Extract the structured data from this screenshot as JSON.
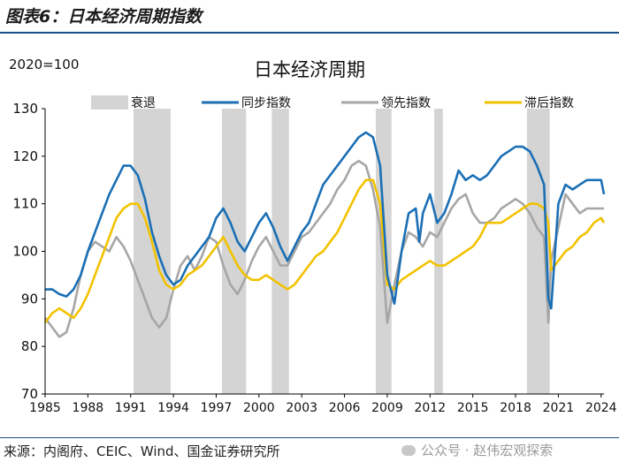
{
  "header": {
    "title": "图表6：日本经济周期指数"
  },
  "footer": {
    "source": "来源：内阁府、CEIC、Wind、国金证券研究所",
    "watermark": "公众号 · 赵伟宏观探索"
  },
  "colors": {
    "coincident": "#1a6fb5",
    "leading": "#a6a6a6",
    "lagging": "#f2c200",
    "recession": "#d4d4d4",
    "axis": "#000000"
  },
  "chart_data": {
    "type": "line",
    "title": "日本经济周期",
    "unit_note": "2020=100",
    "xlabel": "",
    "ylabel": "",
    "ylim": [
      70,
      130
    ],
    "xlim": [
      1985,
      2024.2
    ],
    "yticks": [
      70,
      80,
      90,
      100,
      110,
      120,
      130
    ],
    "xticks": [
      "1985",
      "1988",
      "1991",
      "1994",
      "1997",
      "2000",
      "2003",
      "2006",
      "2009",
      "2012",
      "2015",
      "2018",
      "2021",
      "2024"
    ],
    "xtick_values": [
      1985,
      1988,
      1991,
      1994,
      1997,
      2000,
      2003,
      2006,
      2009,
      2012,
      2015,
      2018,
      2021,
      2024
    ],
    "legend": [
      "衰退",
      "同步指数",
      "领先指数",
      "滞后指数"
    ],
    "recessions": [
      [
        1991.2,
        1993.8
      ],
      [
        1997.4,
        1999.1
      ],
      [
        2000.9,
        2002.1
      ],
      [
        2008.2,
        2009.3
      ],
      [
        2012.3,
        2012.9
      ],
      [
        2018.8,
        2020.4
      ]
    ],
    "series": [
      {
        "name": "同步指数",
        "x": [
          1985.0,
          1985.5,
          1986.0,
          1986.5,
          1987.0,
          1987.5,
          1988.0,
          1988.5,
          1989.0,
          1989.5,
          1990.0,
          1990.5,
          1991.0,
          1991.5,
          1992.0,
          1992.5,
          1993.0,
          1993.5,
          1994.0,
          1994.5,
          1995.0,
          1995.5,
          1996.0,
          1996.5,
          1997.0,
          1997.5,
          1998.0,
          1998.5,
          1999.0,
          1999.5,
          2000.0,
          2000.5,
          2001.0,
          2001.5,
          2002.0,
          2002.5,
          2003.0,
          2003.5,
          2004.0,
          2004.5,
          2005.0,
          2005.5,
          2006.0,
          2006.5,
          2007.0,
          2007.5,
          2008.0,
          2008.5,
          2009.0,
          2009.5,
          2010.0,
          2010.5,
          2011.0,
          2011.25,
          2011.5,
          2012.0,
          2012.5,
          2013.0,
          2013.5,
          2014.0,
          2014.5,
          2015.0,
          2015.5,
          2016.0,
          2016.5,
          2017.0,
          2017.5,
          2018.0,
          2018.5,
          2019.0,
          2019.5,
          2020.0,
          2020.3,
          2020.5,
          2021.0,
          2021.5,
          2022.0,
          2022.5,
          2023.0,
          2023.5,
          2024.0,
          2024.2
        ],
        "values": [
          92,
          92,
          91,
          90.5,
          92,
          95,
          100,
          104,
          108,
          112,
          115,
          118,
          118,
          116,
          111,
          104,
          99,
          95,
          93,
          94,
          97,
          99,
          101,
          103,
          107,
          109,
          106,
          102,
          100,
          103,
          106,
          108,
          105,
          101,
          98,
          101,
          104,
          106,
          110,
          114,
          116,
          118,
          120,
          122,
          124,
          125,
          124,
          118,
          95,
          89,
          100,
          108,
          109,
          102,
          108,
          112,
          106,
          108,
          112,
          117,
          115,
          116,
          115,
          116,
          118,
          120,
          121,
          122,
          122,
          121,
          118,
          114,
          90,
          88,
          110,
          114,
          113,
          114,
          115,
          115,
          115,
          112
        ]
      },
      {
        "name": "领先指数",
        "x": [
          1985.0,
          1985.5,
          1986.0,
          1986.5,
          1987.0,
          1987.5,
          1988.0,
          1988.5,
          1989.0,
          1989.5,
          1990.0,
          1990.5,
          1991.0,
          1991.5,
          1992.0,
          1992.5,
          1993.0,
          1993.5,
          1994.0,
          1994.5,
          1995.0,
          1995.5,
          1996.0,
          1996.5,
          1997.0,
          1997.5,
          1998.0,
          1998.5,
          1999.0,
          1999.5,
          2000.0,
          2000.5,
          2001.0,
          2001.5,
          2002.0,
          2002.5,
          2003.0,
          2003.5,
          2004.0,
          2004.5,
          2005.0,
          2005.5,
          2006.0,
          2006.5,
          2007.0,
          2007.5,
          2008.0,
          2008.5,
          2009.0,
          2009.5,
          2010.0,
          2010.5,
          2011.0,
          2011.5,
          2012.0,
          2012.5,
          2013.0,
          2013.5,
          2014.0,
          2014.5,
          2015.0,
          2015.5,
          2016.0,
          2016.5,
          2017.0,
          2017.5,
          2018.0,
          2018.5,
          2019.0,
          2019.5,
          2020.0,
          2020.3,
          2020.5,
          2021.0,
          2021.5,
          2022.0,
          2022.5,
          2023.0,
          2023.5,
          2024.0,
          2024.2
        ],
        "values": [
          86,
          84,
          82,
          83,
          88,
          95,
          100,
          102,
          101,
          100,
          103,
          101,
          98,
          94,
          90,
          86,
          84,
          86,
          92,
          97,
          99,
          96,
          99,
          103,
          102,
          97,
          93,
          91,
          94,
          98,
          101,
          103,
          100,
          97,
          97,
          100,
          103,
          104,
          106,
          108,
          110,
          113,
          115,
          118,
          119,
          118,
          113,
          105,
          85,
          93,
          100,
          104,
          103,
          101,
          104,
          103,
          106,
          109,
          111,
          112,
          108,
          106,
          106,
          107,
          109,
          110,
          111,
          110,
          108,
          105,
          103,
          85,
          98,
          105,
          112,
          110,
          108,
          109,
          109,
          109,
          109
        ]
      },
      {
        "name": "滞后指数",
        "x": [
          1985.0,
          1985.5,
          1986.0,
          1986.5,
          1987.0,
          1987.5,
          1988.0,
          1988.5,
          1989.0,
          1989.5,
          1990.0,
          1990.5,
          1991.0,
          1991.5,
          1992.0,
          1992.5,
          1993.0,
          1993.5,
          1994.0,
          1994.5,
          1995.0,
          1995.5,
          1996.0,
          1996.5,
          1997.0,
          1997.5,
          1998.0,
          1998.5,
          1999.0,
          1999.5,
          2000.0,
          2000.5,
          2001.0,
          2001.5,
          2002.0,
          2002.5,
          2003.0,
          2003.5,
          2004.0,
          2004.5,
          2005.0,
          2005.5,
          2006.0,
          2006.5,
          2007.0,
          2007.5,
          2008.0,
          2008.5,
          2009.0,
          2009.5,
          2010.0,
          2010.5,
          2011.0,
          2011.5,
          2012.0,
          2012.5,
          2013.0,
          2013.5,
          2014.0,
          2014.5,
          2015.0,
          2015.5,
          2016.0,
          2016.5,
          2017.0,
          2017.5,
          2018.0,
          2018.5,
          2019.0,
          2019.5,
          2020.0,
          2020.3,
          2020.5,
          2021.0,
          2021.5,
          2022.0,
          2022.5,
          2023.0,
          2023.5,
          2024.0,
          2024.2
        ],
        "values": [
          85,
          87,
          88,
          87,
          86,
          88,
          91,
          95,
          99,
          103,
          107,
          109,
          110,
          110,
          107,
          102,
          96,
          93,
          92,
          93,
          95,
          96,
          97,
          99,
          101,
          103,
          100,
          97,
          95,
          94,
          94,
          95,
          94,
          93,
          92,
          93,
          95,
          97,
          99,
          100,
          102,
          104,
          107,
          110,
          113,
          115,
          115,
          110,
          93,
          92,
          94,
          95,
          96,
          97,
          98,
          97,
          97,
          98,
          99,
          100,
          101,
          103,
          106,
          106,
          106,
          107,
          108,
          109,
          110,
          110,
          109,
          106,
          96,
          98,
          100,
          101,
          103,
          104,
          106,
          107,
          106
        ]
      }
    ]
  }
}
